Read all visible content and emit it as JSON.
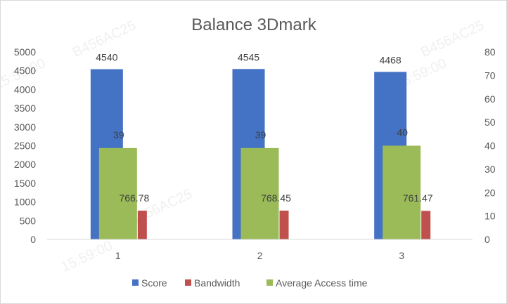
{
  "chart_data": {
    "type": "bar",
    "title": "Balance 3Dmark",
    "categories": [
      "1",
      "2",
      "3"
    ],
    "series": [
      {
        "name": "Score",
        "axis": "left",
        "color": "#4472C4",
        "values": [
          4540,
          4545,
          4468
        ],
        "labels": [
          "4540",
          "4545",
          "4468"
        ]
      },
      {
        "name": "Bandwidth",
        "axis": "left",
        "color": "#C0504D",
        "values": [
          766.78,
          768.45,
          761.47
        ],
        "labels": [
          "766.78",
          "768.45",
          "761.47"
        ]
      },
      {
        "name": "Average Access time",
        "axis": "right",
        "color": "#9BBB59",
        "values": [
          39,
          39,
          40
        ],
        "labels": [
          "39",
          "39",
          "40"
        ]
      }
    ],
    "left_axis": {
      "ylim": [
        0,
        5000
      ],
      "ticks": [
        "0",
        "500",
        "1000",
        "1500",
        "2000",
        "2500",
        "3000",
        "3500",
        "4000",
        "4500",
        "5000"
      ]
    },
    "right_axis": {
      "ylim": [
        0,
        80
      ],
      "ticks": [
        "0",
        "10",
        "20",
        "30",
        "40",
        "50",
        "60",
        "70",
        "80"
      ]
    },
    "grid": false,
    "legend_position": "bottom"
  },
  "watermarks": [
    "B456AC25",
    "15:59:00"
  ]
}
